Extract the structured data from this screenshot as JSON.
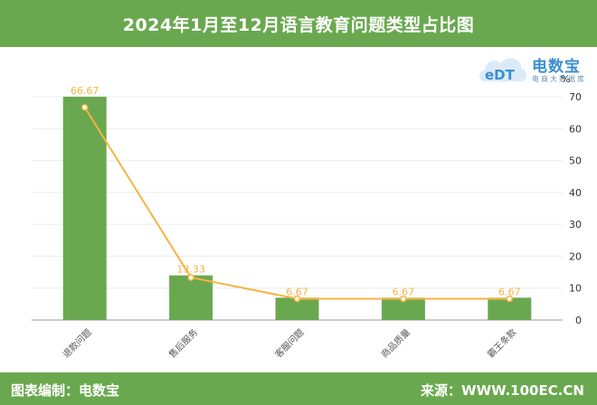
{
  "header": {
    "title": "2024年1月至12月语言教育问题类型占比图"
  },
  "footer": {
    "left": "图表编制：电数宝",
    "right": "来源：WWW.100EC.CN"
  },
  "logo": {
    "brand": "电数宝",
    "sub": "电商大数据库",
    "mark": "eDT"
  },
  "chart_data": {
    "type": "bar",
    "categories": [
      "退款问题",
      "售后服务",
      "客服问题",
      "商品质量",
      "霸王条款"
    ],
    "series": [
      {
        "type": "bar",
        "values": [
          70,
          14,
          7,
          7,
          7
        ]
      },
      {
        "type": "line",
        "values": [
          66.67,
          13.33,
          6.67,
          6.67,
          6.67
        ]
      }
    ],
    "data_labels": [
      "66.67",
      "13.33",
      "6.67",
      "6.67",
      "6.67"
    ],
    "y_axis": {
      "position": "right",
      "unit": "%",
      "min": 0,
      "max": 70,
      "ticks": [
        0,
        10,
        20,
        30,
        40,
        50,
        60,
        70
      ]
    },
    "grid": true,
    "colors": {
      "bar": "#6aa84f",
      "line": "#f6b443",
      "label": "#f6b443",
      "header": "#6aa84f"
    }
  }
}
